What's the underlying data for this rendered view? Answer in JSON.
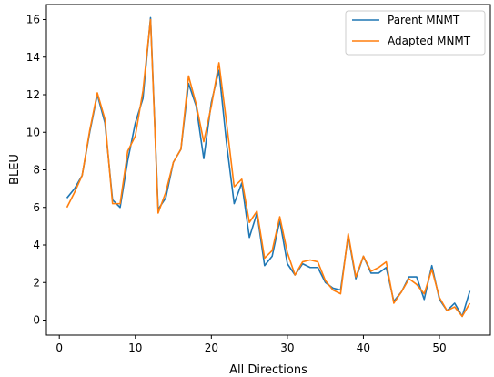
{
  "chart_data": {
    "type": "line",
    "title": "",
    "xlabel": "All Directions",
    "ylabel": "BLEU",
    "xlim": [
      -1.7,
      56.7
    ],
    "ylim": [
      -0.8,
      16.8
    ],
    "xticks": [
      0,
      10,
      20,
      30,
      40,
      50
    ],
    "yticks": [
      0,
      2,
      4,
      6,
      8,
      10,
      12,
      14,
      16
    ],
    "grid": false,
    "legend_position": "top-right",
    "x": [
      1,
      2,
      3,
      4,
      5,
      6,
      7,
      8,
      9,
      10,
      11,
      12,
      13,
      14,
      15,
      16,
      17,
      18,
      19,
      20,
      21,
      22,
      23,
      24,
      25,
      26,
      27,
      28,
      29,
      30,
      31,
      32,
      33,
      34,
      35,
      36,
      37,
      38,
      39,
      40,
      41,
      42,
      43,
      44,
      45,
      46,
      47,
      48,
      49,
      50,
      51,
      52,
      53,
      54
    ],
    "series": [
      {
        "name": "Parent MNMT",
        "color": "#1f77b4",
        "values": [
          6.5,
          7.0,
          7.7,
          10.0,
          12.0,
          10.5,
          6.4,
          6.0,
          8.5,
          10.5,
          11.8,
          16.1,
          5.9,
          6.5,
          8.4,
          9.1,
          12.6,
          11.4,
          8.6,
          11.6,
          13.3,
          9.4,
          6.2,
          7.3,
          4.4,
          5.7,
          2.9,
          3.4,
          5.3,
          3.0,
          2.4,
          3.0,
          2.8,
          2.8,
          2.0,
          1.7,
          1.6,
          4.5,
          2.2,
          3.4,
          2.5,
          2.5,
          2.8,
          1.0,
          1.5,
          2.3,
          2.3,
          1.1,
          2.9,
          1.1,
          0.5,
          0.9,
          0.2,
          1.55
        ]
      },
      {
        "name": "Adapted MNMT",
        "color": "#ff7f0e",
        "values": [
          6.0,
          6.8,
          7.7,
          10.1,
          12.1,
          10.7,
          6.2,
          6.2,
          9.0,
          9.8,
          12.2,
          16.0,
          5.7,
          6.8,
          8.4,
          9.1,
          13.0,
          11.5,
          9.5,
          11.4,
          13.7,
          10.5,
          7.1,
          7.5,
          5.2,
          5.8,
          3.3,
          3.7,
          5.5,
          3.6,
          2.4,
          3.1,
          3.2,
          3.1,
          2.1,
          1.6,
          1.4,
          4.6,
          2.3,
          3.4,
          2.6,
          2.8,
          3.1,
          0.9,
          1.5,
          2.2,
          1.9,
          1.4,
          2.7,
          1.2,
          0.5,
          0.7,
          0.2,
          0.9
        ]
      }
    ]
  }
}
